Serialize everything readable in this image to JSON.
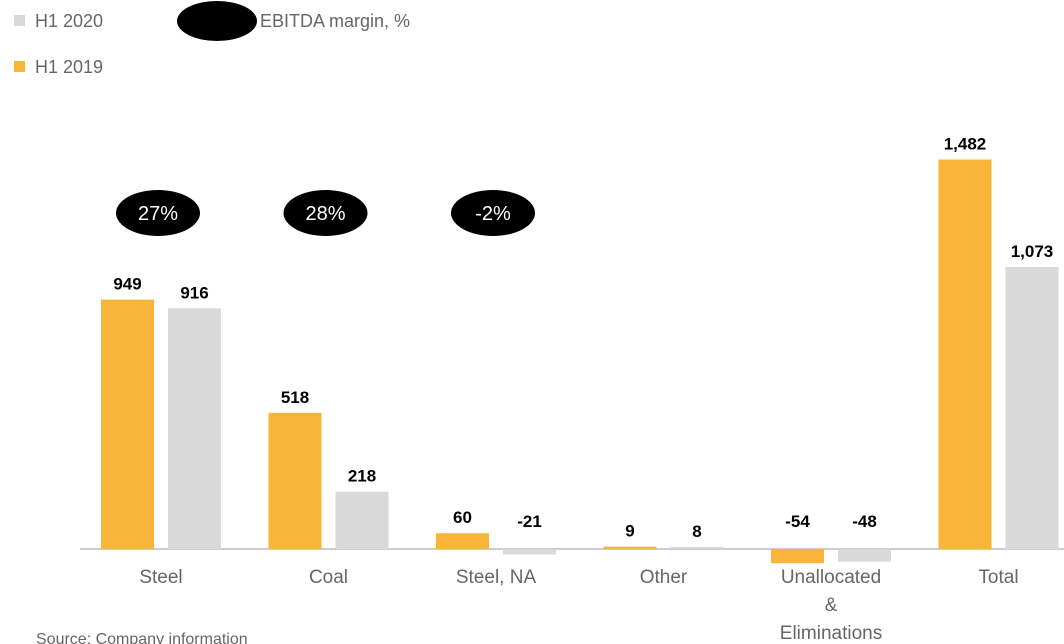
{
  "legend": {
    "items": [
      {
        "name": "H1 2020",
        "color": "#d9d9d9"
      },
      {
        "name": "H1 2019",
        "color": "#f9b53a"
      }
    ],
    "margin_label": "EBITDA margin, %",
    "margin_color": "#000000"
  },
  "source": "Source: Company information",
  "chart_data": {
    "type": "bar",
    "categories": [
      "Steel",
      "Coal",
      "Steel, NA",
      "Other",
      "Unallocated & Eliminations",
      "Total"
    ],
    "category_label_lines": [
      [
        "Steel"
      ],
      [
        "Coal"
      ],
      [
        "Steel, NA"
      ],
      [
        "Other"
      ],
      [
        "Unallocated",
        "&",
        "Eliminations"
      ],
      [
        "Total"
      ]
    ],
    "series": [
      {
        "name": "H1 2019",
        "color": "#f9b53a",
        "values": [
          949,
          518,
          60,
          9,
          -54,
          1482
        ],
        "labels": [
          "949",
          "518",
          "60",
          "9",
          "-54",
          "1,482"
        ]
      },
      {
        "name": "H1 2020",
        "color": "#d9d9d9",
        "values": [
          916,
          218,
          -21,
          8,
          -48,
          1073
        ],
        "labels": [
          "916",
          "218",
          "-21",
          "8",
          "-48",
          "1,073"
        ]
      }
    ],
    "margins": [
      {
        "category": "Steel",
        "value": "27%"
      },
      {
        "category": "Coal",
        "value": "28%"
      },
      {
        "category": "Steel, NA",
        "value": "-2%"
      }
    ],
    "ylim": [
      -60,
      1600
    ],
    "grid": false,
    "legend_position": "top-left"
  }
}
